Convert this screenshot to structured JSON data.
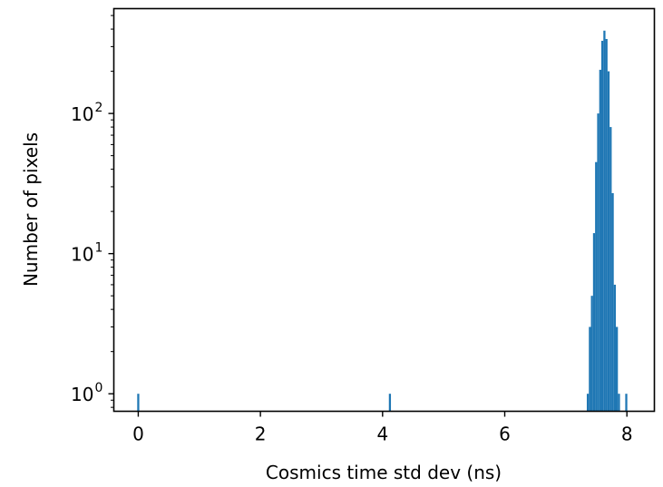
{
  "chart_data": {
    "type": "bar",
    "xlabel": "Cosmics time std dev (ns)",
    "ylabel": "Number of pixels",
    "yscale": "log",
    "xlim": [
      -0.4,
      8.45
    ],
    "ylim": [
      0.75,
      560
    ],
    "x_ticks": [
      0,
      2,
      4,
      6,
      8
    ],
    "x_tick_labels": [
      "0",
      "2",
      "4",
      "6",
      "8"
    ],
    "y_ticks": [
      1,
      10,
      100
    ],
    "y_tick_labels": [
      {
        "base": "10",
        "exp": "0"
      },
      {
        "base": "10",
        "exp": "1"
      },
      {
        "base": "10",
        "exp": "2"
      }
    ],
    "color": "#1f77b4",
    "grid": false,
    "bin_width": 0.0338,
    "bins": [
      {
        "x": 0.0,
        "count": 1
      },
      {
        "x": 4.12,
        "count": 1
      },
      {
        "x": 7.36,
        "count": 1
      },
      {
        "x": 7.394,
        "count": 3
      },
      {
        "x": 7.428,
        "count": 5
      },
      {
        "x": 7.462,
        "count": 14
      },
      {
        "x": 7.496,
        "count": 45
      },
      {
        "x": 7.53,
        "count": 100
      },
      {
        "x": 7.564,
        "count": 205
      },
      {
        "x": 7.598,
        "count": 330
      },
      {
        "x": 7.632,
        "count": 390
      },
      {
        "x": 7.666,
        "count": 340
      },
      {
        "x": 7.7,
        "count": 200
      },
      {
        "x": 7.734,
        "count": 80
      },
      {
        "x": 7.768,
        "count": 27
      },
      {
        "x": 7.802,
        "count": 6
      },
      {
        "x": 7.836,
        "count": 3
      },
      {
        "x": 7.87,
        "count": 1
      },
      {
        "x": 7.99,
        "count": 1
      }
    ]
  }
}
